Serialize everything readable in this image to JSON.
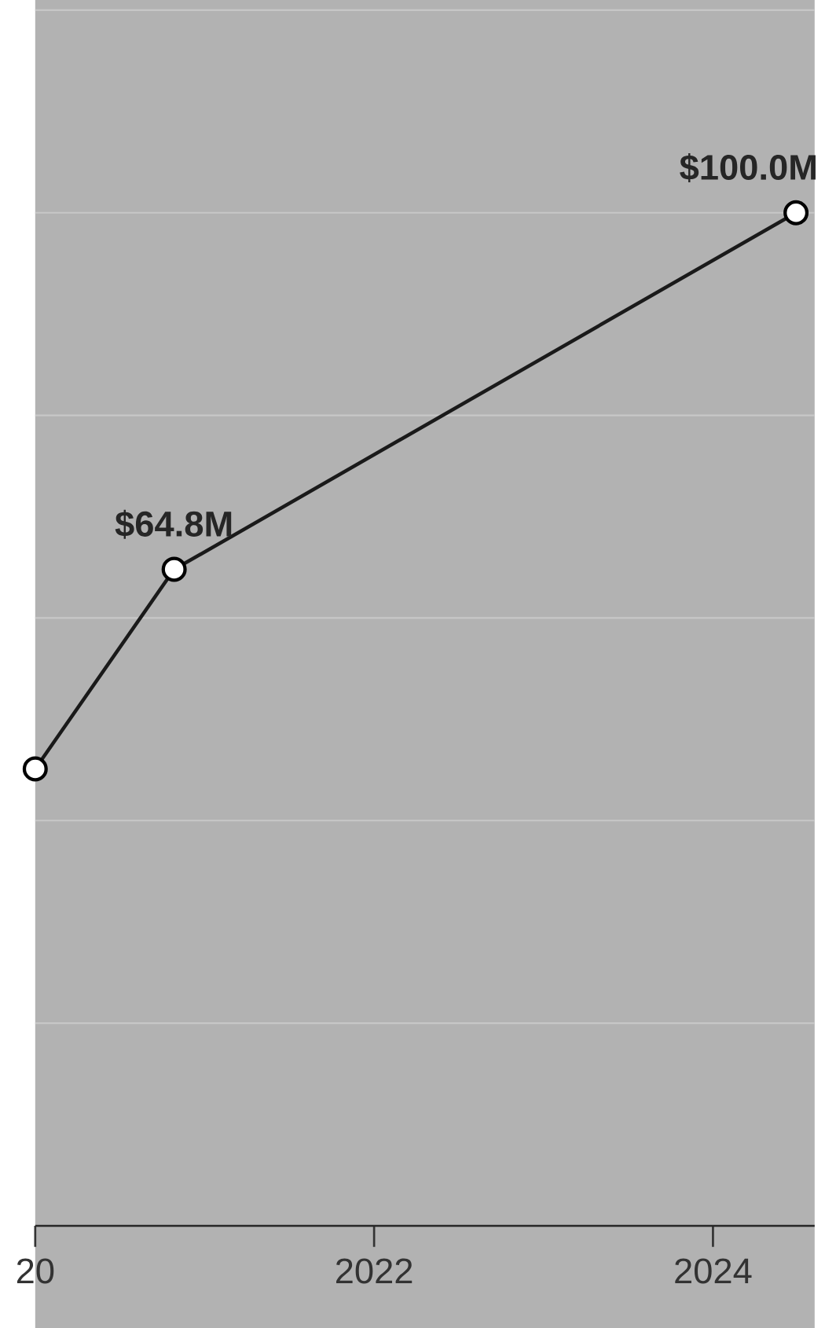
{
  "chart_data": {
    "type": "line",
    "x": [
      2020,
      2020.82,
      2024.49
    ],
    "series": [
      {
        "color": "#1a1a1a",
        "values": [
          45.1,
          64.8,
          100.0
        ],
        "value_labels": [
          null,
          "$64.8M",
          "$100.0M"
        ]
      }
    ],
    "xlim": [
      2020,
      2024.6
    ],
    "ylim": [
      0,
      121
    ],
    "xticks": [
      {
        "value": 2020,
        "label": "20"
      },
      2022,
      2024
    ],
    "yticks": [
      {
        "value": 0,
        "label": null
      },
      {
        "value": 20,
        "label": null
      },
      {
        "value": 40,
        "label": null
      },
      {
        "value": 60,
        "label": null
      },
      {
        "value": 80,
        "label": null
      },
      {
        "value": 100,
        "label": null
      },
      {
        "value": 120,
        "label": null
      }
    ],
    "grid": "y",
    "tick_labels": "x",
    "marker": "circle"
  }
}
